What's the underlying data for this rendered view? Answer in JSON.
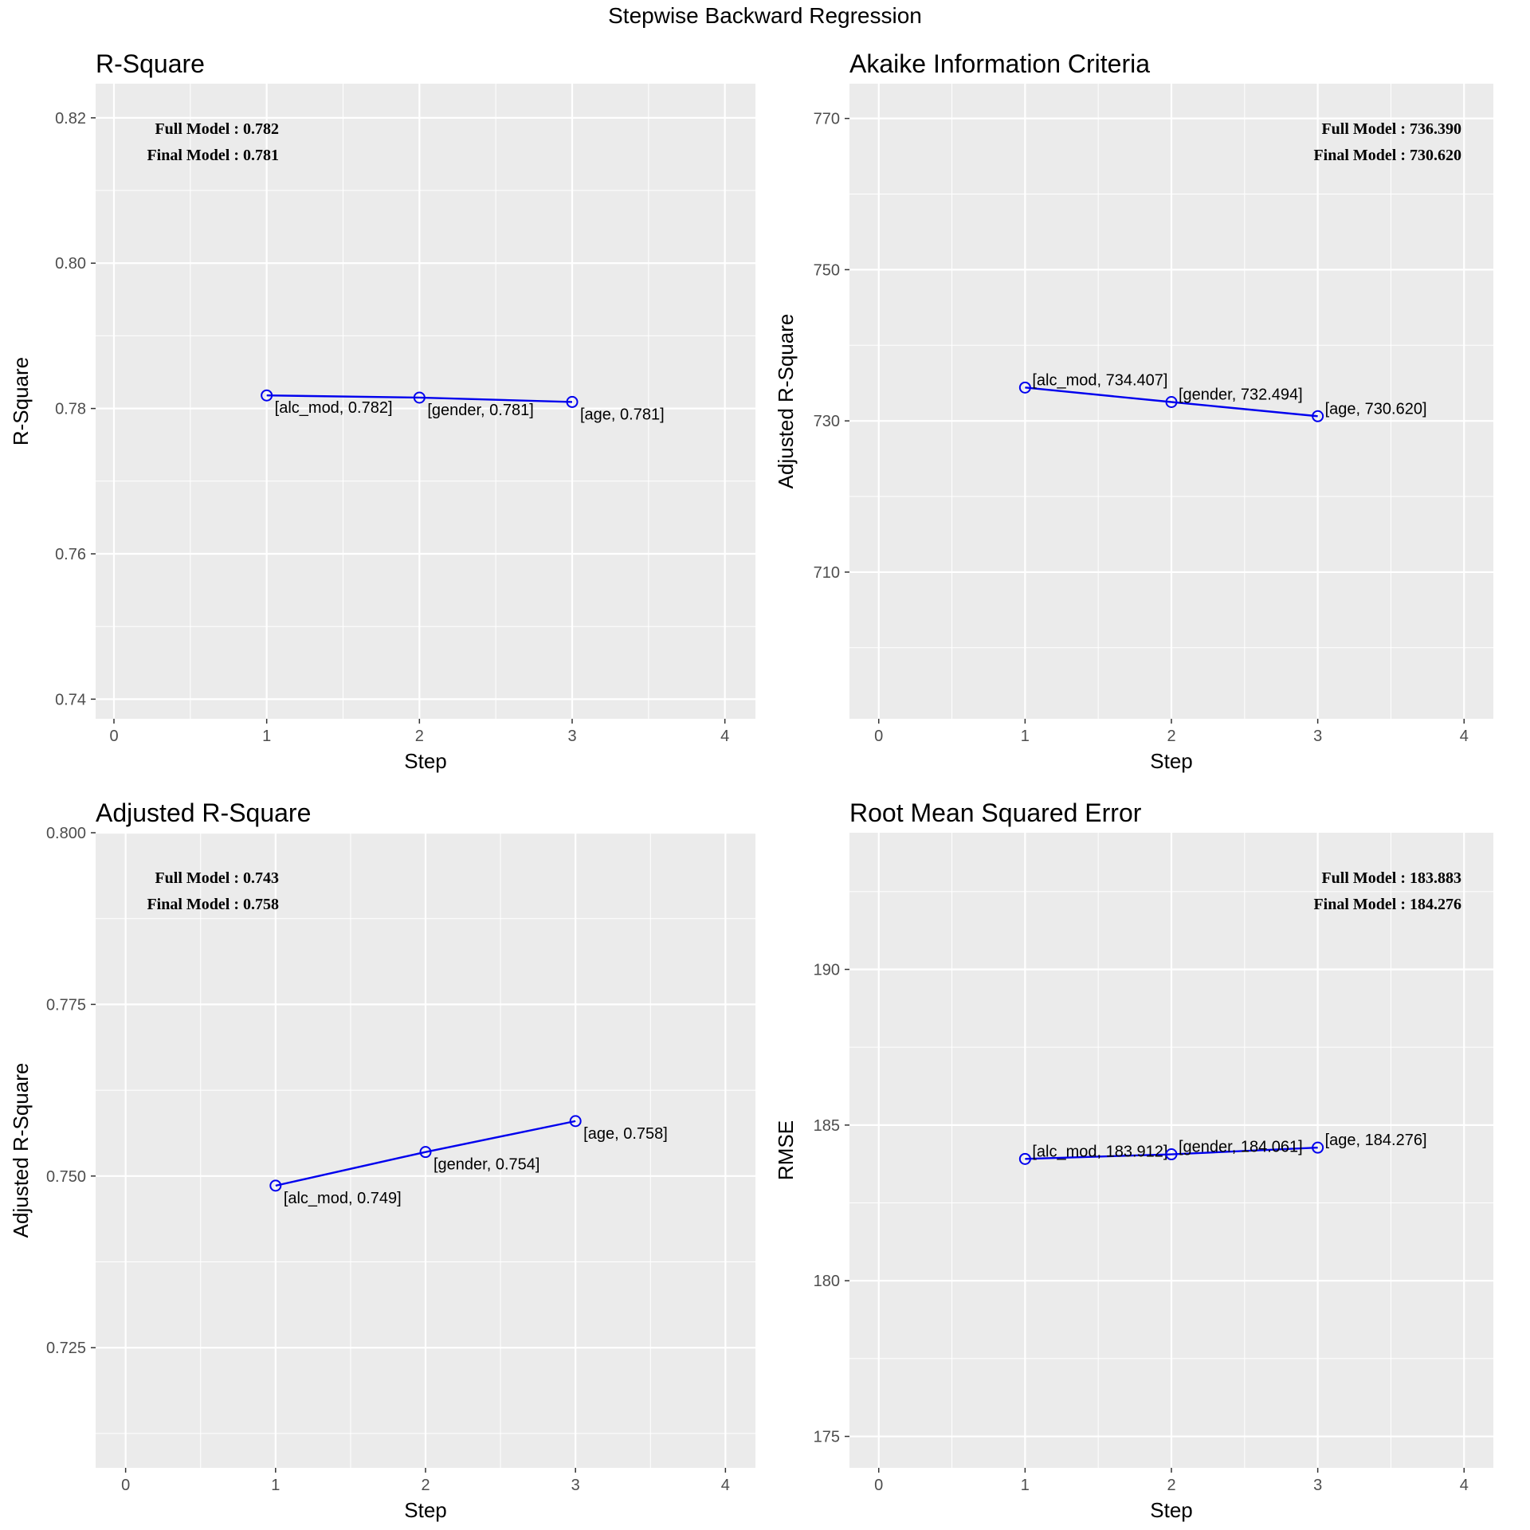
{
  "title": "Stepwise Backward Regression",
  "colors": {
    "line": "#0000ee",
    "panel_bg": "#ebebeb",
    "grid": "#ffffff"
  },
  "chart_data": [
    {
      "type": "line",
      "title": "R-Square",
      "xlabel": "Step",
      "ylabel": "R-Square",
      "xlim": [
        -0.12,
        4.2
      ],
      "ylim": [
        0.7373,
        0.8247
      ],
      "xticks": [
        0,
        1,
        2,
        3,
        4
      ],
      "xtick_labels": [
        "0",
        "1",
        "2",
        "3",
        "4"
      ],
      "yticks": [
        0.74,
        0.76,
        0.78,
        0.8,
        0.82
      ],
      "ytick_labels": [
        "0.74",
        "0.76",
        "0.78",
        "0.80",
        "0.82"
      ],
      "x": [
        1,
        2,
        3
      ],
      "values": [
        0.7818,
        0.7815,
        0.7809
      ],
      "point_labels": [
        "[alc_mod, 0.782]",
        "[gender, 0.781]",
        "[age, 0.781]"
      ],
      "label_position": "below-right",
      "annotations": [
        "Full Model  : 0.782",
        "Final Model : 0.781"
      ],
      "annotation_position": "top-left",
      "grid": true
    },
    {
      "type": "line",
      "title": "Akaike Information Criteria",
      "xlabel": "Step",
      "ylabel": "Adjusted R-Square",
      "xlim": [
        -0.2,
        4.2
      ],
      "ylim": [
        690.6,
        774.6
      ],
      "xticks": [
        0,
        1,
        2,
        3,
        4
      ],
      "xtick_labels": [
        "0",
        "1",
        "2",
        "3",
        "4"
      ],
      "yticks": [
        710,
        730,
        750,
        770
      ],
      "ytick_labels": [
        "710",
        "730",
        "750",
        "770"
      ],
      "x": [
        1,
        2,
        3
      ],
      "values": [
        734.407,
        732.494,
        730.62
      ],
      "point_labels": [
        "[alc_mod, 734.407]",
        "[gender, 732.494]",
        "[age, 730.620]"
      ],
      "label_position": "right",
      "annotations": [
        "Full Model  : 736.390",
        "Final Model : 730.620"
      ],
      "annotation_position": "top-right",
      "grid": true
    },
    {
      "type": "line",
      "title": "Adjusted R-Square",
      "xlabel": "Step",
      "ylabel": "Adjusted R-Square",
      "xlim": [
        -0.2,
        4.2
      ],
      "ylim": [
        0.7075,
        0.8
      ],
      "xticks": [
        0,
        1,
        2,
        3,
        4
      ],
      "xtick_labels": [
        "0",
        "1",
        "2",
        "3",
        "4"
      ],
      "yticks": [
        0.725,
        0.75,
        0.775,
        0.8
      ],
      "ytick_labels": [
        "0.725",
        "0.750",
        "0.775",
        "0.800"
      ],
      "x": [
        1,
        2,
        3
      ],
      "values": [
        0.7486,
        0.7535,
        0.758
      ],
      "point_labels": [
        "[alc_mod, 0.749]",
        "[gender, 0.754]",
        "[age, 0.758]"
      ],
      "label_position": "below-right",
      "annotations": [
        "Full Model  : 0.743",
        "Final Model : 0.758"
      ],
      "annotation_position": "top-left",
      "grid": true
    },
    {
      "type": "line",
      "title": "Root Mean Squared Error",
      "xlabel": "Step",
      "ylabel": "RMSE",
      "xlim": [
        -0.2,
        4.2
      ],
      "ylim": [
        173.99,
        194.39
      ],
      "xticks": [
        0,
        1,
        2,
        3,
        4
      ],
      "xtick_labels": [
        "0",
        "1",
        "2",
        "3",
        "4"
      ],
      "yticks": [
        175,
        180,
        185,
        190
      ],
      "ytick_labels": [
        "175",
        "180",
        "185",
        "190"
      ],
      "x": [
        1,
        2,
        3
      ],
      "values": [
        183.912,
        184.061,
        184.276
      ],
      "point_labels": [
        "[alc_mod, 183.912]",
        "[gender, 184.061]",
        "[age, 184.276]"
      ],
      "label_position": "right",
      "annotations": [
        "Full Model  : 183.883",
        "Final Model : 184.276"
      ],
      "annotation_position": "top-right",
      "grid": true
    }
  ]
}
